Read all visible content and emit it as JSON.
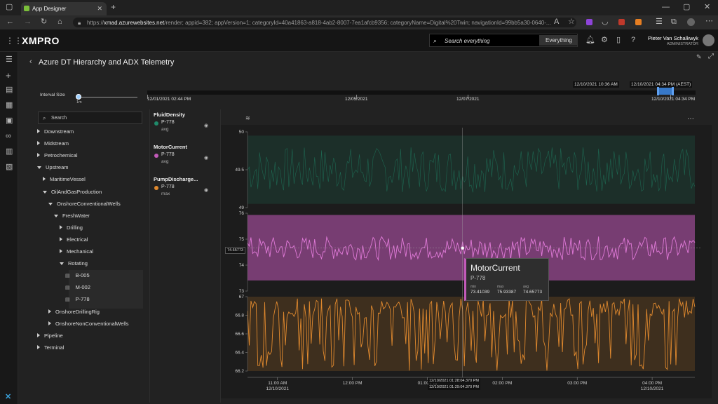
{
  "browser": {
    "tab_title": "App Designer",
    "url_prefix": "https://",
    "url_host": "xmad.azurewebsites.net",
    "url_rest": "/render; appid=382; appVersion=1; categoryId=40a41863-a818-4ab2-8007-7ea1afcb9356; categoryName=Digital%20Twin; navigationId=99bb5a30-0640-..."
  },
  "header": {
    "logo": "XMPRO",
    "search_placeholder": "Search everything",
    "search_scope": "Everything",
    "user_name": "Pieter Van Schalkwyk",
    "user_role": "ADMINISTRATOR"
  },
  "page": {
    "title": "Azure DT Hierarchy and ADX Telemetry"
  },
  "interval": {
    "label": "Interval Size",
    "value_label": "1m",
    "fraction": 0.02
  },
  "timeline": {
    "selection_start": "12/10/2021 10:36 AM",
    "selection_end": "12/10/2021 04:34 PM (AEST)",
    "ticks": [
      "12/01/2021 02:44 PM",
      "12/05/2021",
      "12/07/2021",
      "12/10/2021 04:34 PM"
    ]
  },
  "tree": {
    "search_placeholder": "Search",
    "items": [
      {
        "label": "Downstream",
        "kind": "closed"
      },
      {
        "label": "Midstream",
        "kind": "closed"
      },
      {
        "label": "Petrochemical",
        "kind": "closed"
      },
      {
        "label": "Upstream",
        "kind": "open"
      },
      {
        "label": "MaritimeVessel",
        "kind": "closed"
      },
      {
        "label": "OilAndGasProduction",
        "kind": "open"
      },
      {
        "label": "OnshoreConventionalWells",
        "kind": "open"
      },
      {
        "label": "FreshWater",
        "kind": "open"
      },
      {
        "label": "Drilling",
        "kind": "closed"
      },
      {
        "label": "Electrical",
        "kind": "closed"
      },
      {
        "label": "Mechanical",
        "kind": "closed"
      },
      {
        "label": "Rotating",
        "kind": "open"
      },
      {
        "label": "B-005",
        "kind": "leaf"
      },
      {
        "label": "M-002",
        "kind": "leaf"
      },
      {
        "label": "P-778",
        "kind": "leaf"
      },
      {
        "label": "OnshoreDrillingRig",
        "kind": "closed"
      },
      {
        "label": "OnshoreNonConventionalWells",
        "kind": "closed"
      },
      {
        "label": "Pipeline",
        "kind": "closed"
      },
      {
        "label": "Terminal",
        "kind": "closed"
      }
    ]
  },
  "legend": [
    {
      "name": "FluidDensity",
      "asset": "P-778",
      "agg": "avg",
      "color": "#1f8a6a"
    },
    {
      "name": "MotorCurrent",
      "asset": "P-778",
      "agg": "avg",
      "color": "#c25ab9"
    },
    {
      "name": "PumpDischarge...",
      "asset": "P-778",
      "agg": "max",
      "color": "#e0892e"
    }
  ],
  "tooltip": {
    "title": "MotorCurrent",
    "asset": "P-778",
    "min_label": "min",
    "min": "73.41039",
    "max_label": "max",
    "max": "75.93387",
    "avg_label": "avg",
    "avg": "74.65773"
  },
  "cursor": {
    "value_label": "74.65773",
    "time_label_1": "12/10/2021 01:28:04.370 PM",
    "time_label_2": "12/10/2021 01:29:04.370 PM"
  },
  "chart_data": {
    "type": "line",
    "x_ticks": [
      "11:00 AM\n12/10/2021",
      "12:00 PM",
      "01:00 PM",
      "02:00 PM",
      "03:00 PM",
      "04:00 PM\n12/10/2021"
    ],
    "x_tick_lines": [
      [
        "11:00 AM",
        "12/10/2021"
      ],
      [
        "12:00 PM",
        ""
      ],
      [
        "01:00 PM",
        ""
      ],
      [
        "02:00 PM",
        ""
      ],
      [
        "03:00 PM",
        ""
      ],
      [
        "04:00 PM",
        "12/10/2021"
      ]
    ],
    "x_tick_hours": [
      11,
      12,
      13,
      14,
      15,
      16
    ],
    "x_range_hours": [
      10.6,
      16.57
    ],
    "cursor_hour": 13.47,
    "series": [
      {
        "name": "FluidDensity",
        "agg": "avg",
        "color": "#1f8a6a",
        "ylim": [
          49,
          50
        ],
        "yticks": [
          49,
          49.5,
          50
        ],
        "band": [
          49.05,
          49.95
        ],
        "line": [
          49.2,
          49.8
        ]
      },
      {
        "name": "MotorCurrent",
        "agg": "avg",
        "color": "#c25ab9",
        "ylim": [
          73,
          76
        ],
        "yticks": [
          73,
          74,
          75,
          76
        ],
        "band": [
          73.41039,
          75.93387
        ],
        "line": [
          74.2,
          75.1
        ],
        "avg": 74.65773
      },
      {
        "name": "PumpDischarge...",
        "agg": "max",
        "color": "#e0892e",
        "ylim": [
          66.2,
          67
        ],
        "yticks": [
          66.2,
          66.4,
          66.6,
          66.8,
          67
        ],
        "band": [
          66.2,
          67
        ],
        "line": [
          66.2,
          66.98
        ]
      }
    ]
  }
}
